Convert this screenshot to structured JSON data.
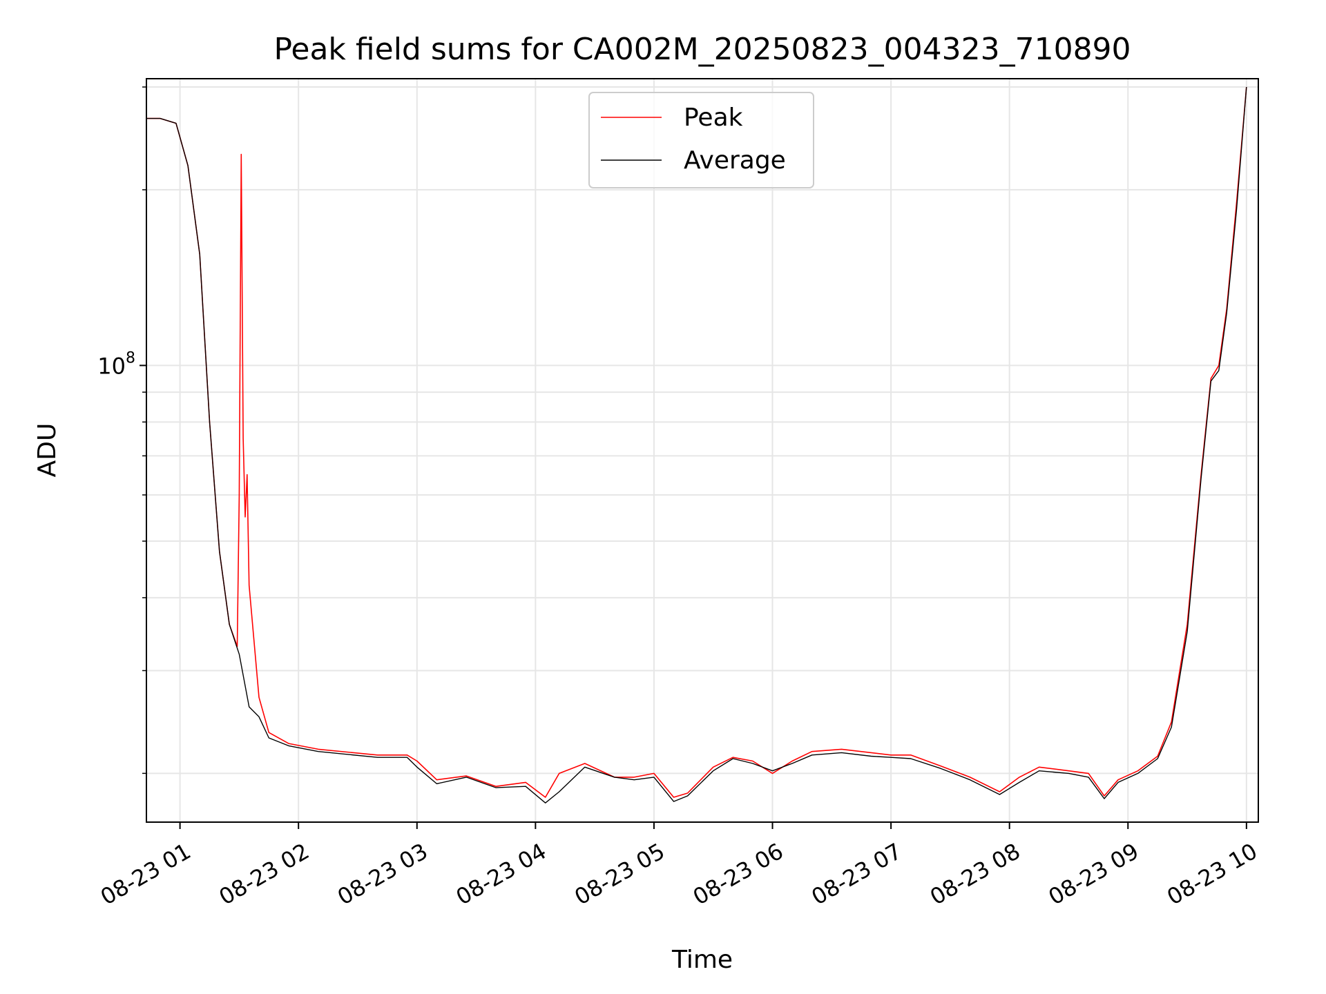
{
  "chart_data": {
    "type": "line",
    "title": "Peak field sums for CA002M_20250823_004323_710890",
    "xlabel": "Time",
    "ylabel": "ADU",
    "yscale": "log",
    "ylim": [
      16500000,
      310000000
    ],
    "xlim": [
      "2025-08-23 00:43",
      "2025-08-23 10:06"
    ],
    "x_tick_labels": [
      "08-23 01",
      "08-23 02",
      "08-23 03",
      "08-23 04",
      "08-23 05",
      "08-23 06",
      "08-23 07",
      "08-23 08",
      "08-23 09",
      "08-23 10"
    ],
    "x_tick_values": [
      "2025-08-23 01:00",
      "2025-08-23 02:00",
      "2025-08-23 03:00",
      "2025-08-23 04:00",
      "2025-08-23 05:00",
      "2025-08-23 06:00",
      "2025-08-23 07:00",
      "2025-08-23 08:00",
      "2025-08-23 09:00",
      "2025-08-23 10:00"
    ],
    "y_tick_label": "10^8",
    "y_tick_value": 100000000,
    "grid": true,
    "legend": "upper center",
    "series": [
      {
        "name": "Peak",
        "color": "#ff0000",
        "x": [
          "2025-08-23 00:43",
          "2025-08-23 00:50",
          "2025-08-23 00:58",
          "2025-08-23 01:04",
          "2025-08-23 01:10",
          "2025-08-23 01:15",
          "2025-08-23 01:20",
          "2025-08-23 01:25",
          "2025-08-23 01:29",
          "2025-08-23 01:30",
          "2025-08-23 01:31",
          "2025-08-23 01:32",
          "2025-08-23 01:33",
          "2025-08-23 01:34",
          "2025-08-23 01:35",
          "2025-08-23 01:40",
          "2025-08-23 01:45",
          "2025-08-23 01:55",
          "2025-08-23 02:10",
          "2025-08-23 02:40",
          "2025-08-23 02:55",
          "2025-08-23 03:00",
          "2025-08-23 03:10",
          "2025-08-23 03:25",
          "2025-08-23 03:40",
          "2025-08-23 03:55",
          "2025-08-23 04:05",
          "2025-08-23 04:12",
          "2025-08-23 04:25",
          "2025-08-23 04:40",
          "2025-08-23 04:50",
          "2025-08-23 05:00",
          "2025-08-23 05:10",
          "2025-08-23 05:17",
          "2025-08-23 05:30",
          "2025-08-23 05:40",
          "2025-08-23 05:50",
          "2025-08-23 06:00",
          "2025-08-23 06:10",
          "2025-08-23 06:20",
          "2025-08-23 06:35",
          "2025-08-23 06:50",
          "2025-08-23 07:00",
          "2025-08-23 07:10",
          "2025-08-23 07:25",
          "2025-08-23 07:40",
          "2025-08-23 07:55",
          "2025-08-23 08:05",
          "2025-08-23 08:15",
          "2025-08-23 08:30",
          "2025-08-23 08:40",
          "2025-08-23 08:48",
          "2025-08-23 08:55",
          "2025-08-23 09:05",
          "2025-08-23 09:15",
          "2025-08-23 09:22",
          "2025-08-23 09:30",
          "2025-08-23 09:37",
          "2025-08-23 09:42",
          "2025-08-23 09:46",
          "2025-08-23 09:50",
          "2025-08-23 09:55",
          "2025-08-23 10:00"
        ],
        "y": [
          265000000,
          265000000,
          260000000,
          220000000,
          155000000,
          80000000,
          48000000,
          36000000,
          33000000,
          60000000,
          230000000,
          75000000,
          55000000,
          65000000,
          42000000,
          27000000,
          23500000,
          22500000,
          22000000,
          21500000,
          21500000,
          21000000,
          19500000,
          19800000,
          19000000,
          19300000,
          18200000,
          20000000,
          20800000,
          19700000,
          19700000,
          20000000,
          18200000,
          18500000,
          20500000,
          21300000,
          21000000,
          20000000,
          21000000,
          21800000,
          22000000,
          21700000,
          21500000,
          21500000,
          20600000,
          19700000,
          18600000,
          19700000,
          20500000,
          20200000,
          20000000,
          18300000,
          19500000,
          20200000,
          21400000,
          24500000,
          36000000,
          65000000,
          95000000,
          100000000,
          125000000,
          190000000,
          300000000
        ]
      },
      {
        "name": "Average",
        "color": "#000000",
        "x": [
          "2025-08-23 00:43",
          "2025-08-23 00:50",
          "2025-08-23 00:58",
          "2025-08-23 01:04",
          "2025-08-23 01:10",
          "2025-08-23 01:15",
          "2025-08-23 01:20",
          "2025-08-23 01:25",
          "2025-08-23 01:30",
          "2025-08-23 01:35",
          "2025-08-23 01:40",
          "2025-08-23 01:45",
          "2025-08-23 01:55",
          "2025-08-23 02:10",
          "2025-08-23 02:40",
          "2025-08-23 02:55",
          "2025-08-23 03:00",
          "2025-08-23 03:10",
          "2025-08-23 03:25",
          "2025-08-23 03:40",
          "2025-08-23 03:55",
          "2025-08-23 04:05",
          "2025-08-23 04:12",
          "2025-08-23 04:25",
          "2025-08-23 04:40",
          "2025-08-23 04:50",
          "2025-08-23 05:00",
          "2025-08-23 05:10",
          "2025-08-23 05:17",
          "2025-08-23 05:30",
          "2025-08-23 05:40",
          "2025-08-23 05:50",
          "2025-08-23 06:00",
          "2025-08-23 06:10",
          "2025-08-23 06:20",
          "2025-08-23 06:35",
          "2025-08-23 06:50",
          "2025-08-23 07:00",
          "2025-08-23 07:10",
          "2025-08-23 07:25",
          "2025-08-23 07:40",
          "2025-08-23 07:55",
          "2025-08-23 08:05",
          "2025-08-23 08:15",
          "2025-08-23 08:30",
          "2025-08-23 08:40",
          "2025-08-23 08:48",
          "2025-08-23 08:55",
          "2025-08-23 09:05",
          "2025-08-23 09:15",
          "2025-08-23 09:22",
          "2025-08-23 09:30",
          "2025-08-23 09:37",
          "2025-08-23 09:42",
          "2025-08-23 09:46",
          "2025-08-23 09:50",
          "2025-08-23 09:55",
          "2025-08-23 10:00"
        ],
        "y": [
          265000000,
          265000000,
          260000000,
          220000000,
          155000000,
          80000000,
          48000000,
          36000000,
          32000000,
          26000000,
          25000000,
          23000000,
          22300000,
          21800000,
          21300000,
          21300000,
          20500000,
          19200000,
          19700000,
          18900000,
          19000000,
          17800000,
          18600000,
          20500000,
          19700000,
          19500000,
          19700000,
          17900000,
          18300000,
          20200000,
          21200000,
          20800000,
          20200000,
          20800000,
          21500000,
          21700000,
          21400000,
          21300000,
          21200000,
          20400000,
          19500000,
          18400000,
          19300000,
          20200000,
          20000000,
          19700000,
          18100000,
          19300000,
          20000000,
          21200000,
          24000000,
          35000000,
          64000000,
          94000000,
          98000000,
          123000000,
          185000000,
          300000000
        ]
      }
    ]
  }
}
